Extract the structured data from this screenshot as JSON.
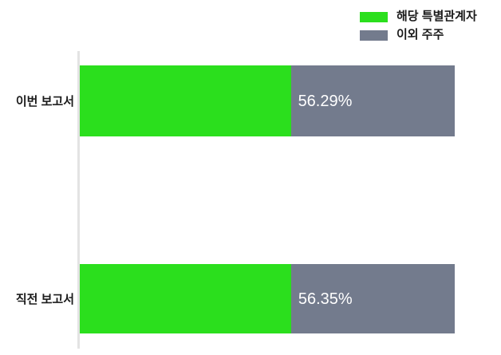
{
  "chart_data": {
    "type": "bar",
    "orientation": "horizontal",
    "stacked": true,
    "title": "",
    "xlabel": "",
    "ylabel": "",
    "xlim": [
      0,
      100
    ],
    "grid": false,
    "legend_position": "top-right",
    "categories": [
      "이번 보고서",
      "직전 보고서"
    ],
    "series": [
      {
        "name": "해당 특별관계자",
        "color": "#2bdf1d",
        "values": [
          56.29,
          56.35
        ]
      },
      {
        "name": "이외 주주",
        "color": "#737b8d",
        "values": [
          43.71,
          43.65
        ]
      }
    ],
    "value_labels": [
      "56.29%",
      "56.35%"
    ],
    "value_label_color": "#ffffff",
    "axis_line_color": "#e3e3e3",
    "text_color": "#1a1a1a"
  }
}
